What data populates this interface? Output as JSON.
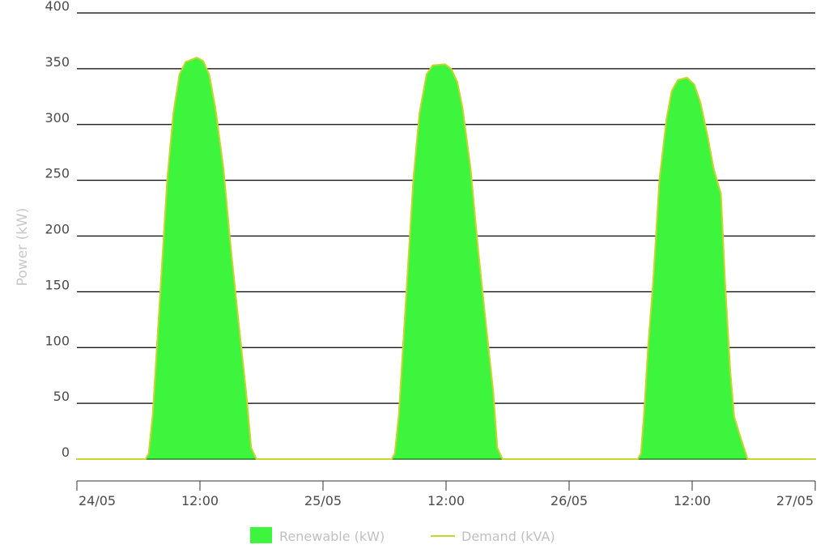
{
  "chart_data": {
    "type": "area",
    "title": "",
    "xlabel": "",
    "ylabel": "Power (kW)",
    "ylim": [
      0,
      400
    ],
    "yticks": [
      0,
      50,
      100,
      150,
      200,
      250,
      300,
      350,
      400
    ],
    "xlim_hours": [
      0,
      72
    ],
    "xticks": [
      {
        "hour": 0,
        "label": "24/05"
      },
      {
        "hour": 12,
        "label": "12:00"
      },
      {
        "hour": 24,
        "label": "25/05"
      },
      {
        "hour": 36,
        "label": "12:00"
      },
      {
        "hour": 48,
        "label": "26/05"
      },
      {
        "hour": 60,
        "label": "12:00"
      },
      {
        "hour": 72,
        "label": "27/05"
      }
    ],
    "grid": true,
    "legend_position": "bottom-center",
    "series": [
      {
        "name": "Renewable (kW)",
        "kind": "area",
        "color": "#3ef53e",
        "points": [
          [
            0,
            0
          ],
          [
            6.7,
            0
          ],
          [
            7.0,
            5
          ],
          [
            7.4,
            40
          ],
          [
            7.8,
            100
          ],
          [
            8.2,
            160
          ],
          [
            8.8,
            250
          ],
          [
            9.4,
            310
          ],
          [
            10.0,
            345
          ],
          [
            10.6,
            356
          ],
          [
            11.7,
            360
          ],
          [
            12.3,
            357
          ],
          [
            12.9,
            345
          ],
          [
            13.5,
            315
          ],
          [
            14.3,
            260
          ],
          [
            15.0,
            190
          ],
          [
            15.8,
            120
          ],
          [
            16.5,
            60
          ],
          [
            17.0,
            10
          ],
          [
            17.5,
            0
          ],
          [
            30.7,
            0
          ],
          [
            31.0,
            5
          ],
          [
            31.4,
            40
          ],
          [
            31.8,
            100
          ],
          [
            32.2,
            160
          ],
          [
            32.8,
            250
          ],
          [
            33.4,
            310
          ],
          [
            34.1,
            345
          ],
          [
            34.7,
            353
          ],
          [
            35.9,
            354
          ],
          [
            36.5,
            350
          ],
          [
            37.1,
            338
          ],
          [
            37.6,
            315
          ],
          [
            38.4,
            260
          ],
          [
            39.1,
            190
          ],
          [
            39.9,
            120
          ],
          [
            40.6,
            60
          ],
          [
            41.0,
            10
          ],
          [
            41.5,
            0
          ],
          [
            54.7,
            0
          ],
          [
            55.0,
            5
          ],
          [
            55.3,
            40
          ],
          [
            55.7,
            100
          ],
          [
            56.2,
            160
          ],
          [
            56.8,
            250
          ],
          [
            57.5,
            305
          ],
          [
            58.0,
            330
          ],
          [
            58.6,
            340
          ],
          [
            59.5,
            342
          ],
          [
            60.2,
            336
          ],
          [
            60.8,
            320
          ],
          [
            61.5,
            290
          ],
          [
            62.1,
            260
          ],
          [
            62.8,
            238
          ],
          [
            63.2,
            160
          ],
          [
            63.7,
            80
          ],
          [
            64.1,
            38
          ],
          [
            64.7,
            20
          ],
          [
            65.4,
            0
          ],
          [
            72,
            0
          ]
        ]
      },
      {
        "name": "Demand (kVA)",
        "kind": "line",
        "color": "#c6d62a",
        "points": [
          [
            0,
            0
          ],
          [
            6.7,
            0
          ],
          [
            7.0,
            5
          ],
          [
            7.4,
            40
          ],
          [
            7.8,
            100
          ],
          [
            8.2,
            160
          ],
          [
            8.8,
            250
          ],
          [
            9.4,
            310
          ],
          [
            10.0,
            345
          ],
          [
            10.6,
            356
          ],
          [
            11.7,
            360
          ],
          [
            12.3,
            357
          ],
          [
            12.9,
            345
          ],
          [
            13.5,
            315
          ],
          [
            14.3,
            260
          ],
          [
            15.0,
            190
          ],
          [
            15.8,
            120
          ],
          [
            16.5,
            60
          ],
          [
            17.0,
            10
          ],
          [
            17.5,
            0
          ],
          [
            30.7,
            0
          ],
          [
            31.0,
            5
          ],
          [
            31.4,
            40
          ],
          [
            31.8,
            100
          ],
          [
            32.2,
            160
          ],
          [
            32.8,
            250
          ],
          [
            33.4,
            310
          ],
          [
            34.1,
            345
          ],
          [
            34.7,
            353
          ],
          [
            35.9,
            354
          ],
          [
            36.5,
            350
          ],
          [
            37.1,
            338
          ],
          [
            37.6,
            315
          ],
          [
            38.4,
            260
          ],
          [
            39.1,
            190
          ],
          [
            39.9,
            120
          ],
          [
            40.6,
            60
          ],
          [
            41.0,
            10
          ],
          [
            41.5,
            0
          ],
          [
            54.7,
            0
          ],
          [
            55.0,
            5
          ],
          [
            55.3,
            40
          ],
          [
            55.7,
            100
          ],
          [
            56.2,
            160
          ],
          [
            56.8,
            250
          ],
          [
            57.5,
            305
          ],
          [
            58.0,
            330
          ],
          [
            58.6,
            340
          ],
          [
            59.5,
            342
          ],
          [
            60.2,
            336
          ],
          [
            60.8,
            320
          ],
          [
            61.5,
            290
          ],
          [
            62.1,
            260
          ],
          [
            62.8,
            238
          ],
          [
            63.2,
            160
          ],
          [
            63.7,
            80
          ],
          [
            64.1,
            38
          ],
          [
            64.7,
            20
          ],
          [
            65.4,
            0
          ],
          [
            72,
            0
          ]
        ]
      }
    ]
  }
}
